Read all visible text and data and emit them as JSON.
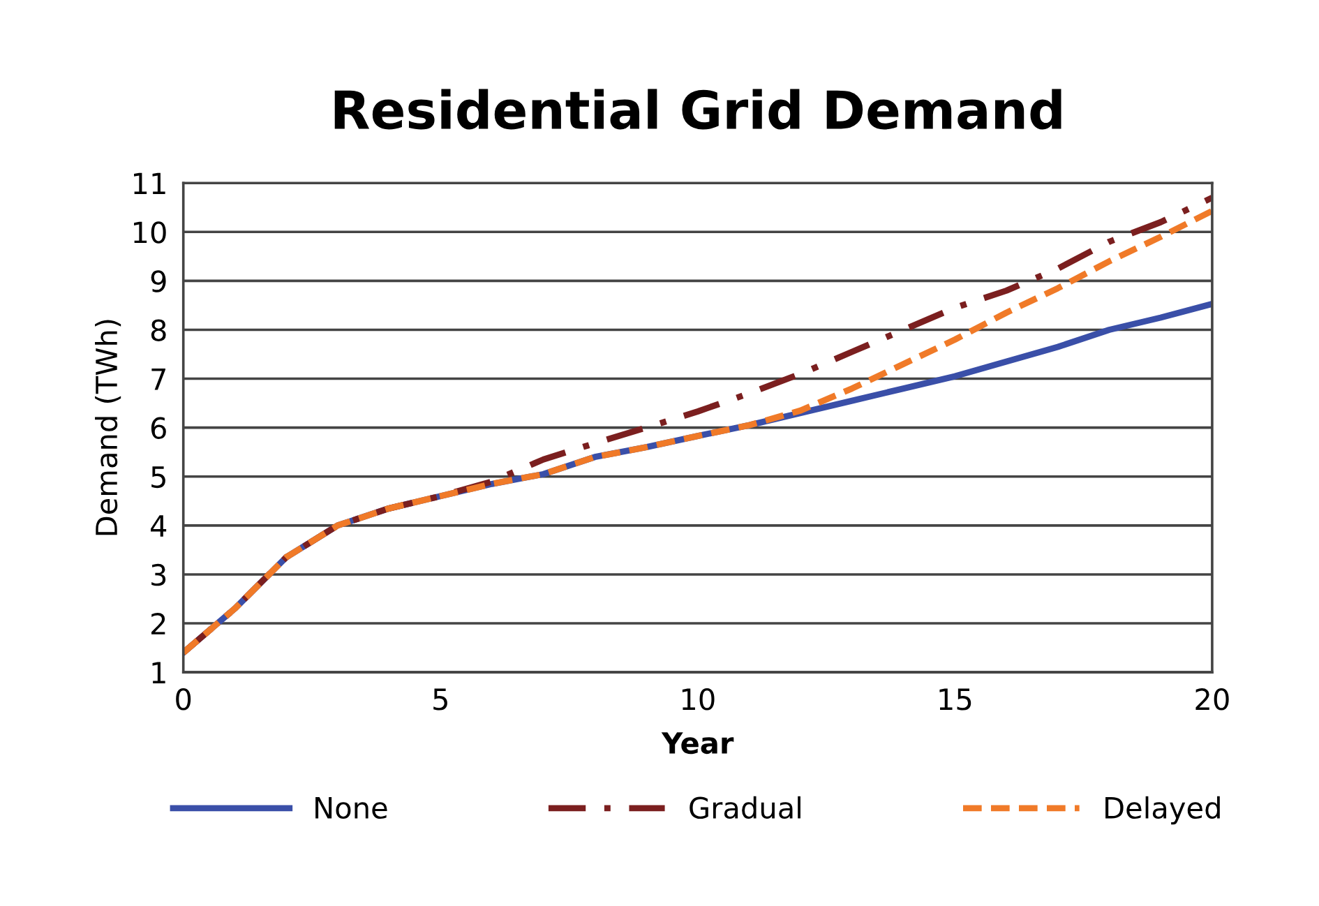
{
  "chart_data": {
    "type": "line",
    "title": "Residential Grid Demand",
    "xlabel": "Year",
    "ylabel": "Demand (TWh)",
    "x": [
      0,
      1,
      2,
      3,
      4,
      5,
      6,
      7,
      8,
      9,
      10,
      11,
      12,
      13,
      14,
      15,
      16,
      17,
      18,
      19,
      20
    ],
    "series": [
      {
        "name": "None",
        "color": "#3a4fa8",
        "line_style": "solid",
        "values": [
          1.4,
          2.3,
          3.35,
          4.0,
          4.35,
          4.6,
          4.85,
          5.05,
          5.4,
          5.6,
          5.83,
          6.05,
          6.3,
          6.55,
          6.8,
          7.05,
          7.35,
          7.65,
          8.0,
          8.25,
          8.53
        ]
      },
      {
        "name": "Gradual",
        "color": "#7b1f1f",
        "line_style": "dashdot",
        "values": [
          1.4,
          2.3,
          3.35,
          4.0,
          4.35,
          4.6,
          4.9,
          5.35,
          5.68,
          6.0,
          6.33,
          6.7,
          7.1,
          7.55,
          8.0,
          8.45,
          8.8,
          9.25,
          9.8,
          10.2,
          10.7
        ]
      },
      {
        "name": "Delayed",
        "color": "#f07a28",
        "line_style": "dashed",
        "values": [
          1.4,
          2.3,
          3.35,
          4.0,
          4.35,
          4.6,
          4.85,
          5.05,
          5.4,
          5.6,
          5.83,
          6.05,
          6.35,
          6.8,
          7.3,
          7.8,
          8.35,
          8.85,
          9.4,
          9.9,
          10.43
        ]
      }
    ],
    "xlim": [
      0,
      20
    ],
    "xticks": [
      0,
      5,
      10,
      15,
      20
    ],
    "ylim": [
      1,
      11
    ],
    "yticks": [
      1,
      2,
      3,
      4,
      5,
      6,
      7,
      8,
      9,
      10,
      11
    ],
    "grid": "y",
    "legend": "bottom",
    "marker": "none"
  }
}
